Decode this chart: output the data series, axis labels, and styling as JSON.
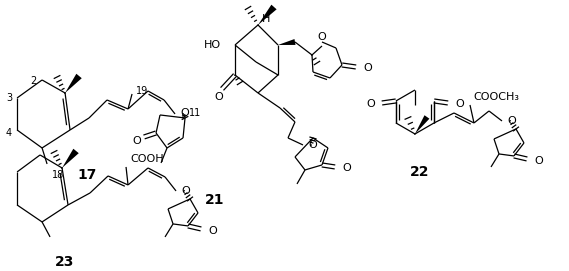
{
  "bg_color": "#ffffff",
  "lc": "#000000",
  "lw": 0.9,
  "compounds": [
    "17",
    "21",
    "22",
    "23"
  ]
}
